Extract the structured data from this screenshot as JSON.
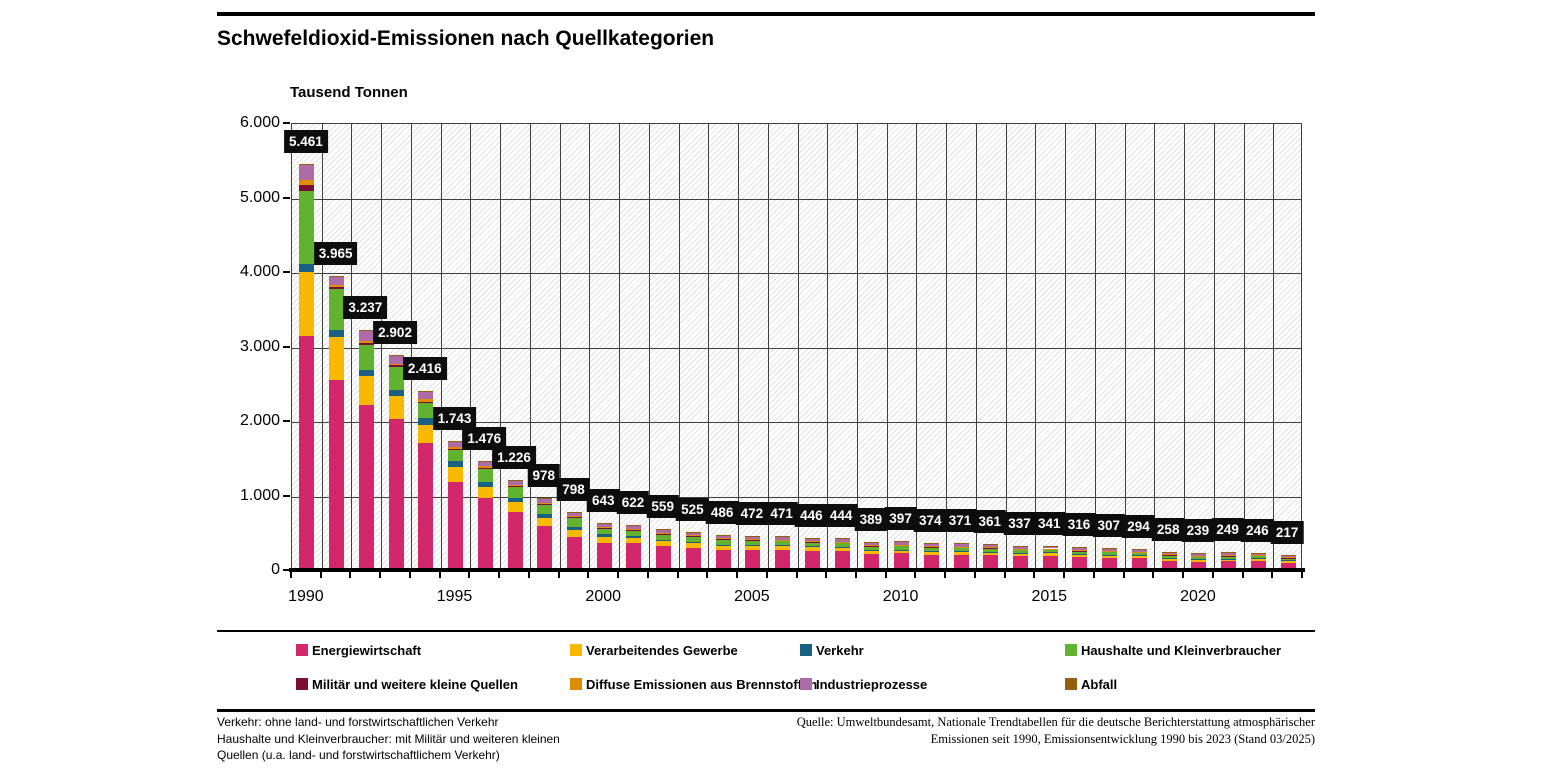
{
  "header": {
    "title": "Schwefeldioxid-Emissionen nach Quellkategorien"
  },
  "chart_data": {
    "type": "bar",
    "stacked": true,
    "title": "Schwefeldioxid-Emissionen nach Quellkategorien",
    "unit_label": "Tausend Tonnen",
    "ylabel": "Tausend Tonnen",
    "ylim": [
      0,
      6000
    ],
    "ytick_step": 1000,
    "ytick_labels": [
      "0",
      "1.000",
      "2.000",
      "3.000",
      "4.000",
      "5.000",
      "6.000"
    ],
    "years": [
      1990,
      1991,
      1992,
      1993,
      1994,
      1995,
      1996,
      1997,
      1998,
      1999,
      2000,
      2001,
      2002,
      2003,
      2004,
      2005,
      2006,
      2007,
      2008,
      2009,
      2010,
      2011,
      2012,
      2013,
      2014,
      2015,
      2016,
      2017,
      2018,
      2019,
      2020,
      2021,
      2022,
      2023
    ],
    "xtick_years": [
      1990,
      1995,
      2000,
      2005,
      2010,
      2015,
      2020
    ],
    "total_labels": [
      "5.461",
      "3.965",
      "3.237",
      "2.902",
      "2.416",
      "1.743",
      "1.476",
      "1.226",
      "978",
      "798",
      "643",
      "622",
      "559",
      "525",
      "486",
      "472",
      "471",
      "446",
      "444",
      "389",
      "397",
      "374",
      "371",
      "361",
      "337",
      "341",
      "316",
      "307",
      "294",
      "258",
      "239",
      "249",
      "246",
      "217"
    ],
    "totals": [
      5461,
      3965,
      3237,
      2902,
      2416,
      1743,
      1476,
      1226,
      978,
      798,
      643,
      622,
      559,
      525,
      486,
      472,
      471,
      446,
      444,
      389,
      397,
      374,
      371,
      361,
      337,
      341,
      316,
      307,
      294,
      258,
      239,
      249,
      246,
      217
    ],
    "series": [
      {
        "name": "Energiewirtschaft",
        "color": "#d2286b",
        "values": [
          3160,
          2570,
          2225,
          2040,
          1715,
          1200,
          980,
          790,
          600,
          460,
          380,
          370,
          330,
          310,
          285,
          280,
          280,
          270,
          265,
          230,
          235,
          220,
          220,
          215,
          200,
          205,
          185,
          175,
          170,
          140,
          120,
          130,
          135,
          110
        ]
      },
      {
        "name": "Verarbeitendes Gewerbe",
        "color": "#f9b900",
        "values": [
          855,
          570,
          395,
          305,
          250,
          190,
          150,
          130,
          110,
          95,
          80,
          75,
          70,
          65,
          60,
          58,
          58,
          55,
          55,
          48,
          48,
          46,
          45,
          44,
          42,
          42,
          40,
          40,
          38,
          36,
          35,
          35,
          34,
          32
        ]
      },
      {
        "name": "Verkehr",
        "color": "#1a6082",
        "values": [
          105,
          90,
          80,
          90,
          90,
          80,
          70,
          60,
          50,
          42,
          30,
          25,
          20,
          15,
          10,
          8,
          6,
          4,
          3,
          2,
          2,
          2,
          2,
          2,
          2,
          2,
          2,
          2,
          2,
          2,
          2,
          2,
          2,
          2
        ]
      },
      {
        "name": "Haushalte und Kleinverbraucher",
        "color": "#61b22f",
        "values": [
          985,
          550,
          340,
          305,
          195,
          150,
          170,
          150,
          130,
          115,
          80,
          80,
          75,
          72,
          68,
          64,
          62,
          55,
          57,
          55,
          55,
          50,
          49,
          47,
          44,
          43,
          42,
          42,
          40,
          38,
          38,
          38,
          35,
          33
        ]
      },
      {
        "name": "Militär und weitere kleine Quellen",
        "color": "#7a0e33",
        "values": [
          80,
          35,
          25,
          20,
          25,
          20,
          15,
          12,
          10,
          8,
          6,
          5,
          5,
          4,
          4,
          4,
          4,
          3,
          3,
          3,
          3,
          3,
          3,
          3,
          3,
          3,
          3,
          3,
          3,
          3,
          3,
          3,
          3,
          3
        ]
      },
      {
        "name": "Diffuse Emissionen aus Brennstoffen",
        "color": "#de8d05",
        "values": [
          60,
          30,
          28,
          25,
          28,
          25,
          20,
          18,
          15,
          14,
          12,
          12,
          11,
          11,
          10,
          10,
          10,
          9,
          9,
          8,
          8,
          8,
          8,
          8,
          7,
          7,
          7,
          7,
          7,
          6,
          6,
          6,
          6,
          6
        ]
      },
      {
        "name": "Industrieprozesse",
        "color": "#ad6ca8",
        "values": [
          210,
          115,
          139,
          112,
          108,
          75,
          68,
          63,
          60,
          61,
          52,
          52,
          45,
          45,
          46,
          45,
          48,
          47,
          49,
          40,
          43,
          42,
          41,
          39,
          36,
          36,
          34,
          35,
          31,
          30,
          32,
          32,
          28,
          28
        ]
      },
      {
        "name": "Abfall",
        "color": "#95600d",
        "values": [
          6,
          5,
          5,
          5,
          5,
          3,
          3,
          3,
          3,
          3,
          3,
          3,
          3,
          3,
          3,
          3,
          3,
          3,
          3,
          3,
          3,
          3,
          3,
          3,
          3,
          3,
          3,
          3,
          3,
          3,
          3,
          3,
          3,
          3
        ]
      }
    ],
    "grid": true,
    "background_pattern": "diagonal-hatch",
    "legend_position": "bottom",
    "value_label_style": {
      "bg": "#0d0d0d",
      "fg": "#ffffff"
    }
  },
  "footnotes": {
    "left_lines": [
      "Verkehr: ohne land- und forstwirtschaftlichen Verkehr",
      "Haushalte und Kleinverbraucher: mit Militär und weiteren kleinen",
      "Quellen (u.a. land- und forstwirtschaftlichem Verkehr)"
    ],
    "source_lines": [
      "Quelle: Umweltbundesamt, Nationale Trendtabellen für die deutsche Berichterstattung atmosphärischer",
      "Emissionen seit 1990, Emissionsentwicklung 1990 bis 2023 (Stand 03/2025)"
    ]
  }
}
